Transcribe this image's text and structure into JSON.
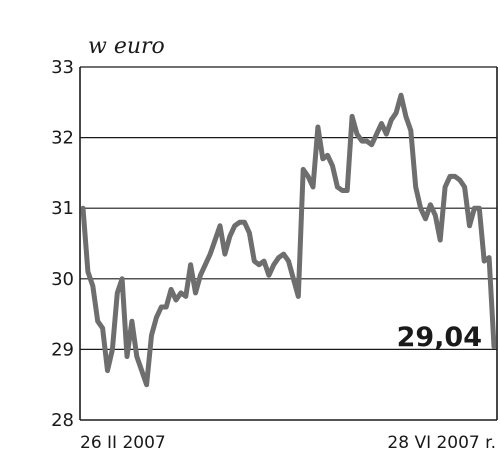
{
  "chart_data": {
    "type": "line",
    "unit_label": "w euro",
    "ylim": [
      28,
      33
    ],
    "yticks": [
      28,
      29,
      30,
      31,
      32,
      33
    ],
    "grid": true,
    "x_labels": {
      "start": "26 II 2007",
      "end": "28 VI 2007 r."
    },
    "last_value_label": "29,04",
    "line_color": "#6e6e6e",
    "series": [
      {
        "values": [
          31.0,
          30.1,
          29.9,
          29.4,
          29.3,
          28.7,
          29.0,
          29.8,
          30.0,
          28.9,
          29.4,
          28.9,
          28.7,
          28.5,
          29.2,
          29.45,
          29.6,
          29.6,
          29.85,
          29.7,
          29.8,
          29.75,
          30.2,
          29.8,
          30.05,
          30.2,
          30.35,
          30.55,
          30.75,
          30.35,
          30.6,
          30.75,
          30.8,
          30.8,
          30.65,
          30.25,
          30.2,
          30.25,
          30.05,
          30.2,
          30.3,
          30.35,
          30.25,
          30.0,
          29.75,
          31.55,
          31.45,
          31.3,
          32.15,
          31.7,
          31.75,
          31.6,
          31.3,
          31.25,
          31.25,
          32.3,
          32.05,
          31.95,
          31.95,
          31.9,
          32.05,
          32.2,
          32.05,
          32.25,
          32.35,
          32.6,
          32.3,
          32.1,
          31.3,
          31.0,
          30.85,
          31.05,
          30.9,
          30.55,
          31.3,
          31.45,
          31.45,
          31.4,
          31.3,
          30.75,
          31.0,
          31.0,
          30.25,
          30.3,
          29.04
        ]
      }
    ]
  }
}
